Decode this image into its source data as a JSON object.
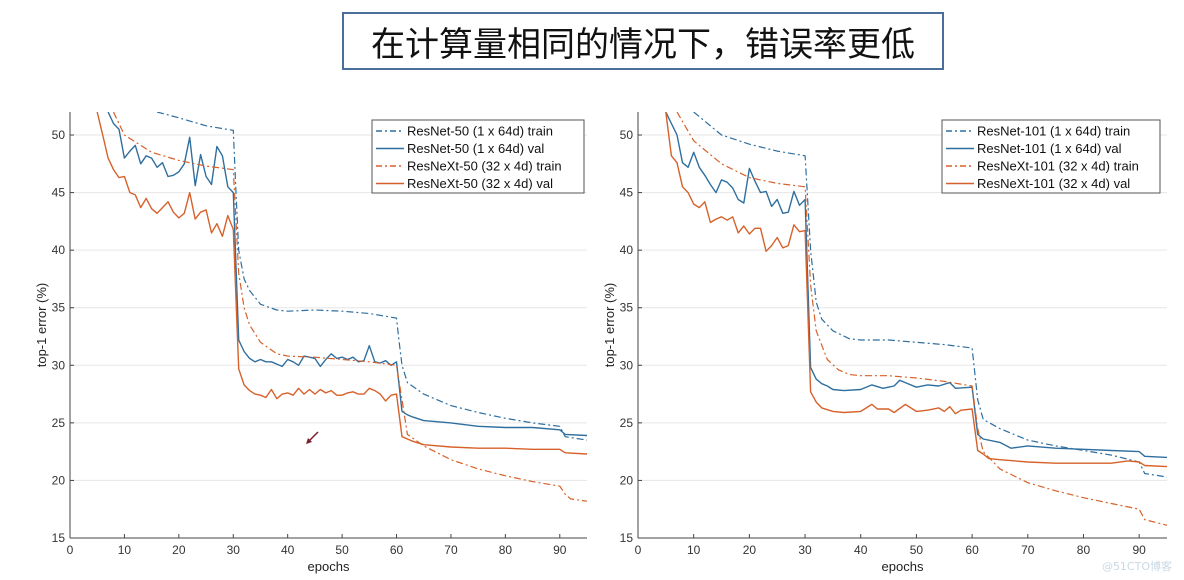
{
  "header": {
    "title": "在计算量相同的情况下，错误率更低"
  },
  "watermark": "@51CTO博客",
  "colors": {
    "resnet": "#2f6f9f",
    "resnext": "#d6612a",
    "title_border": "#4a6f9a",
    "grid": "#e6e6e6"
  },
  "chart_data": [
    {
      "type": "line",
      "xlabel": "epochs",
      "ylabel": "top-1 error (%)",
      "xlim": [
        0,
        95
      ],
      "ylim": [
        15,
        52
      ],
      "xticks": [
        0,
        10,
        20,
        30,
        40,
        50,
        60,
        70,
        80,
        90
      ],
      "yticks": [
        15,
        20,
        25,
        30,
        35,
        40,
        45,
        50
      ],
      "grid": "horizontal",
      "legend_position": "top-right",
      "series": [
        {
          "name": "ResNet-50 (1 x 64d) train",
          "color": "#2f6f9f",
          "style": "dashdot",
          "x": [
            16,
            20,
            25,
            30,
            30.5,
            31,
            32,
            33,
            35,
            38,
            40,
            45,
            50,
            55,
            60,
            60.5,
            61,
            62,
            65,
            70,
            75,
            80,
            85,
            90,
            91,
            95
          ],
          "y": [
            52,
            51.5,
            50.8,
            50.4,
            45,
            40,
            37.5,
            36.5,
            35.3,
            34.8,
            34.7,
            34.8,
            34.7,
            34.5,
            34.1,
            32,
            30,
            28.5,
            27.5,
            26.5,
            25.9,
            25.4,
            25.0,
            24.7,
            23.8,
            23.5
          ]
        },
        {
          "name": "ResNet-50 (1 x 64d) val",
          "color": "#2f6f9f",
          "style": "solid",
          "x": [
            7,
            8,
            9,
            10,
            11,
            12,
            13,
            14,
            15,
            16,
            17,
            18,
            19,
            20,
            21,
            22,
            23,
            24,
            25,
            26,
            27,
            28,
            29,
            30,
            31,
            32,
            33,
            34,
            35,
            36,
            37,
            38,
            39,
            40,
            41,
            42,
            43,
            44,
            45,
            46,
            47,
            48,
            49,
            50,
            51,
            52,
            53,
            54,
            55,
            56,
            57,
            58,
            59,
            60,
            61,
            62,
            63,
            65,
            70,
            75,
            80,
            85,
            90,
            91,
            95
          ],
          "y": [
            52,
            51,
            50.5,
            48,
            48.6,
            49.1,
            47.5,
            48.2,
            48,
            47.2,
            47.6,
            46.4,
            46.5,
            46.8,
            47.5,
            49.8,
            45.6,
            48.3,
            46.4,
            45.7,
            49,
            48.2,
            45.5,
            45,
            32.2,
            31.2,
            30.6,
            30.3,
            30.5,
            30.3,
            30.3,
            30.1,
            29.9,
            30.5,
            30.3,
            30,
            30.8,
            30.7,
            30.6,
            29.9,
            30.5,
            31,
            30.6,
            30.7,
            30.5,
            30.7,
            30.3,
            30.4,
            31.7,
            30.3,
            30.2,
            30.4,
            30,
            30.3,
            26,
            25.7,
            25.5,
            25.2,
            25,
            24.7,
            24.6,
            24.6,
            24.4,
            24,
            23.9
          ]
        },
        {
          "name": "ResNeXt-50 (32 x 4d) train",
          "color": "#d6612a",
          "style": "dashdot",
          "x": [
            8,
            10,
            15,
            20,
            25,
            30,
            31,
            32,
            33,
            35,
            38,
            40,
            45,
            50,
            55,
            60,
            61,
            62,
            65,
            70,
            75,
            80,
            85,
            90,
            91,
            92,
            95
          ],
          "y": [
            52,
            50,
            48.5,
            47.8,
            47.3,
            47,
            38,
            35,
            33.5,
            32,
            31,
            30.8,
            30.7,
            30.5,
            30.3,
            30,
            27,
            24,
            23,
            21.8,
            21,
            20.4,
            19.9,
            19.5,
            18.8,
            18.4,
            18.2
          ]
        },
        {
          "name": "ResNeXt-50 (32 x 4d) val",
          "color": "#d6612a",
          "style": "solid",
          "x": [
            5,
            6,
            7,
            8,
            9,
            10,
            11,
            12,
            13,
            14,
            15,
            16,
            17,
            18,
            19,
            20,
            21,
            22,
            23,
            24,
            25,
            26,
            27,
            28,
            29,
            30,
            31,
            32,
            33,
            34,
            35,
            36,
            37,
            38,
            39,
            40,
            41,
            42,
            43,
            44,
            45,
            46,
            47,
            48,
            49,
            50,
            51,
            52,
            53,
            54,
            55,
            56,
            57,
            58,
            59,
            60,
            61,
            62,
            63,
            65,
            70,
            75,
            80,
            85,
            90,
            91,
            95
          ],
          "y": [
            52,
            50,
            48,
            47,
            46.3,
            46.4,
            45,
            44.8,
            43.7,
            44.5,
            43.6,
            43.2,
            43.7,
            44.2,
            43.3,
            42.8,
            43.2,
            45,
            42.7,
            43.3,
            43.5,
            41.5,
            42.3,
            41.2,
            43,
            41.8,
            29.7,
            28.3,
            27.8,
            27.5,
            27.4,
            27.2,
            27.9,
            27.1,
            27.5,
            27.6,
            27.4,
            28,
            27.5,
            27.9,
            27.5,
            27.9,
            27.6,
            27.8,
            27.4,
            27.4,
            27.6,
            27.7,
            27.5,
            27.5,
            28,
            27.8,
            27.5,
            26.9,
            27.4,
            27.5,
            23.8,
            23.6,
            23.4,
            23.1,
            22.9,
            22.8,
            22.8,
            22.7,
            22.7,
            22.4,
            22.3
          ]
        }
      ]
    },
    {
      "type": "line",
      "xlabel": "epochs",
      "ylabel": "top-1 error (%)",
      "xlim": [
        0,
        95
      ],
      "ylim": [
        15,
        52
      ],
      "xticks": [
        0,
        10,
        20,
        30,
        40,
        50,
        60,
        70,
        80,
        90
      ],
      "yticks": [
        15,
        20,
        25,
        30,
        35,
        40,
        45,
        50
      ],
      "grid": "horizontal",
      "legend_position": "top-right",
      "series": [
        {
          "name": "ResNet-101 (1 x 64d) train",
          "color": "#2f6f9f",
          "style": "dashdot",
          "x": [
            10,
            15,
            20,
            25,
            30,
            31,
            32,
            33,
            35,
            38,
            40,
            45,
            50,
            55,
            60,
            61,
            62,
            65,
            70,
            75,
            80,
            85,
            90,
            91,
            95
          ],
          "y": [
            52,
            50,
            49.2,
            48.6,
            48.2,
            40,
            35.5,
            34,
            33,
            32.3,
            32.2,
            32.2,
            32,
            31.8,
            31.5,
            27,
            25.3,
            24.5,
            23.5,
            23,
            22.6,
            22.2,
            21.6,
            20.6,
            20.3
          ]
        },
        {
          "name": "ResNet-101 (1 x 64d) val",
          "color": "#2f6f9f",
          "style": "solid",
          "x": [
            5,
            6,
            7,
            8,
            9,
            10,
            11,
            12,
            13,
            14,
            15,
            16,
            17,
            18,
            19,
            20,
            21,
            22,
            23,
            24,
            25,
            26,
            27,
            28,
            29,
            30,
            31,
            32,
            33,
            34,
            35,
            37,
            40,
            42,
            44,
            46,
            47,
            48,
            50,
            52,
            54,
            56,
            57,
            60,
            61,
            62,
            65,
            67,
            70,
            75,
            80,
            85,
            90,
            91,
            95
          ],
          "y": [
            52,
            51,
            50,
            47.6,
            47.2,
            48.5,
            47.2,
            46.5,
            45.7,
            45,
            46.1,
            45.9,
            45.4,
            44.4,
            44.1,
            47.1,
            46,
            45,
            45.1,
            43.8,
            44.4,
            43.2,
            43.3,
            45.1,
            43.9,
            44.4,
            29.8,
            28.8,
            28.4,
            28.2,
            27.9,
            27.8,
            27.9,
            28.3,
            28,
            28.2,
            28.7,
            28.5,
            28.1,
            28.3,
            28.2,
            28.5,
            28,
            28.1,
            24,
            23.6,
            23.3,
            22.8,
            23,
            22.8,
            22.7,
            22.6,
            22.5,
            22.1,
            22
          ]
        },
        {
          "name": "ResNeXt-101 (32 x 4d) train",
          "color": "#d6612a",
          "style": "dashdot",
          "x": [
            7,
            10,
            15,
            20,
            25,
            30,
            31,
            32,
            34,
            36,
            38,
            40,
            45,
            50,
            55,
            60,
            61,
            62,
            65,
            70,
            75,
            80,
            85,
            90,
            91,
            95
          ],
          "y": [
            52,
            49.5,
            47.5,
            46.3,
            45.8,
            45.5,
            37,
            33,
            30.5,
            29.6,
            29.2,
            29.1,
            29.1,
            28.9,
            28.6,
            28.2,
            24.5,
            22.5,
            21,
            19.8,
            19.1,
            18.5,
            18,
            17.5,
            16.6,
            16.1
          ]
        },
        {
          "name": "ResNeXt-101 (32 x 4d) val",
          "color": "#d6612a",
          "style": "solid",
          "x": [
            5,
            6,
            7,
            8,
            9,
            10,
            11,
            12,
            13,
            14,
            15,
            16,
            17,
            18,
            19,
            20,
            21,
            22,
            23,
            24,
            25,
            26,
            27,
            28,
            29,
            30,
            31,
            32,
            33,
            35,
            37,
            40,
            42,
            43,
            45,
            46,
            48,
            50,
            52,
            54,
            55,
            56,
            57,
            58,
            60,
            61,
            62,
            63,
            65,
            70,
            75,
            80,
            85,
            88,
            90,
            91,
            95
          ],
          "y": [
            52,
            48.2,
            47.6,
            45.5,
            45,
            44,
            43.7,
            44.2,
            42.4,
            42.7,
            42.9,
            42.6,
            42.9,
            41.5,
            42.1,
            41.4,
            41.9,
            41.9,
            39.9,
            40.4,
            41.1,
            40.2,
            40.4,
            42.2,
            41.6,
            41.7,
            27.7,
            26.8,
            26.3,
            26,
            25.9,
            26,
            26.6,
            26.2,
            26.2,
            25.9,
            26.6,
            26,
            26.1,
            26.3,
            26,
            26.4,
            25.8,
            26.1,
            26.2,
            22.6,
            22.3,
            21.9,
            21.8,
            21.6,
            21.5,
            21.5,
            21.5,
            21.7,
            21.6,
            21.3,
            21.2
          ]
        }
      ]
    }
  ]
}
